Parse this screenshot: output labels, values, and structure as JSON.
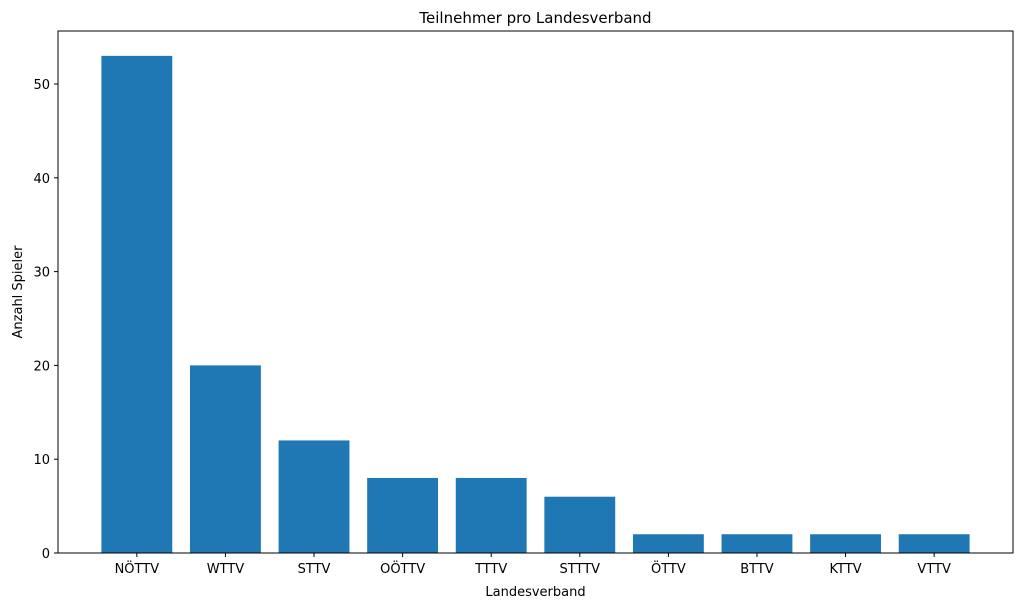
{
  "chart_data": {
    "type": "bar",
    "title": "Teilnehmer pro Landesverband",
    "xlabel": "Landesverband",
    "ylabel": "Anzahl Spieler",
    "categories": [
      "NÖTTV",
      "WTTV",
      "STTV",
      "OÖTTV",
      "TTTV",
      "STTTV",
      "ÖTTV",
      "BTTV",
      "KTTV",
      "VTTV"
    ],
    "values": [
      53,
      20,
      12,
      8,
      8,
      6,
      2,
      2,
      2,
      2
    ],
    "ylim": [
      0,
      55.65
    ],
    "yticks": [
      0,
      10,
      20,
      30,
      40,
      50
    ],
    "grid": false,
    "bar_color": "#1f77b4"
  }
}
